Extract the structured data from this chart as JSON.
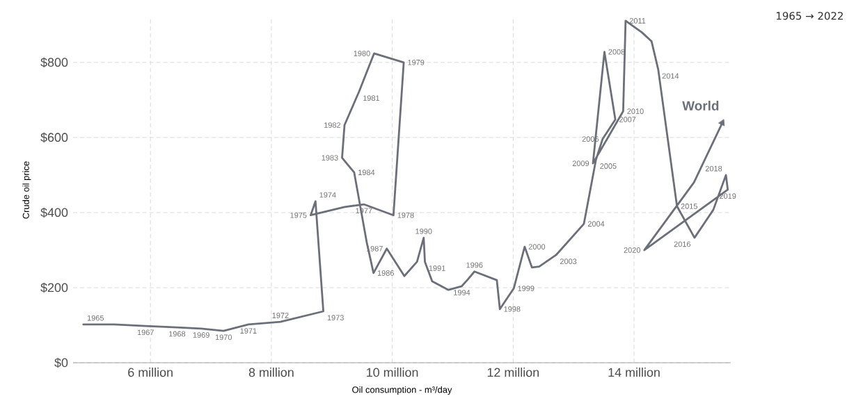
{
  "chart_data": {
    "type": "line",
    "xlabel": "Oil consumption - m³/day",
    "ylabel": "Crude oil price",
    "xlim": [
      4.72,
      15.6
    ],
    "ylim": [
      0,
      920
    ],
    "xticks": [
      {
        "value": 6,
        "label": "6 million"
      },
      {
        "value": 8,
        "label": "8 million"
      },
      {
        "value": 10,
        "label": "10 million"
      },
      {
        "value": 12,
        "label": "12 million"
      },
      {
        "value": 14,
        "label": "14 million"
      }
    ],
    "yticks": [
      {
        "value": 0,
        "label": "$0"
      },
      {
        "value": 200,
        "label": "$200"
      },
      {
        "value": 400,
        "label": "$400"
      },
      {
        "value": 600,
        "label": "$600"
      },
      {
        "value": 800,
        "label": "$800"
      }
    ],
    "grid": true,
    "marker": "none",
    "line_style": "solid",
    "series": [
      {
        "name": "World",
        "color": "#6b6f7a",
        "x": [
          4.89,
          5.4,
          5.92,
          6.44,
          6.84,
          7.21,
          7.62,
          8.15,
          8.86,
          8.73,
          8.65,
          9.21,
          9.53,
          10.02,
          10.19,
          9.7,
          9.45,
          9.21,
          9.17,
          9.37,
          9.58,
          9.69,
          9.91,
          10.2,
          10.41,
          10.52,
          10.54,
          10.66,
          10.93,
          11.15,
          11.25,
          11.36,
          11.73,
          11.78,
          12.01,
          12.19,
          12.31,
          12.43,
          12.71,
          13.17,
          13.37,
          13.48,
          13.69,
          13.51,
          13.32,
          13.82,
          13.86,
          14.13,
          14.29,
          14.4,
          14.71,
          15.0,
          15.31,
          15.52,
          15.55,
          14.17,
          14.99,
          15.46
        ],
        "values": [
          102,
          102,
          98,
          94,
          91,
          85,
          102,
          109,
          137,
          430,
          393,
          415,
          422,
          393,
          800,
          824,
          722,
          633,
          546,
          507,
          319,
          239,
          304,
          231,
          269,
          333,
          269,
          217,
          194,
          204,
          222,
          243,
          220,
          143,
          198,
          309,
          254,
          256,
          287,
          370,
          541,
          596,
          648,
          828,
          531,
          670,
          911,
          880,
          856,
          781,
          417,
          333,
          407,
          500,
          461,
          300,
          480,
          639
        ]
      }
    ],
    "annotations": [
      "1965 → 2022",
      {
        "text": "1965",
        "x": 4.89,
        "y": 102
      },
      {
        "text": "1967",
        "x": 5.92,
        "y": 98
      },
      {
        "text": "1968",
        "x": 6.44,
        "y": 94
      },
      {
        "text": "1969",
        "x": 6.84,
        "y": 91
      },
      {
        "text": "1970",
        "x": 7.21,
        "y": 85
      },
      {
        "text": "1971",
        "x": 7.62,
        "y": 102
      },
      {
        "text": "1972",
        "x": 8.15,
        "y": 109
      },
      {
        "text": "1973",
        "x": 8.86,
        "y": 137
      },
      {
        "text": "1974",
        "x": 8.73,
        "y": 430
      },
      {
        "text": "1975",
        "x": 8.65,
        "y": 393
      },
      {
        "text": "1977",
        "x": 9.53,
        "y": 422
      },
      {
        "text": "1978",
        "x": 10.02,
        "y": 393
      },
      {
        "text": "1979",
        "x": 10.19,
        "y": 800
      },
      {
        "text": "1980",
        "x": 9.7,
        "y": 824
      },
      {
        "text": "1981",
        "x": 9.45,
        "y": 722
      },
      {
        "text": "1982",
        "x": 9.21,
        "y": 633
      },
      {
        "text": "1983",
        "x": 9.17,
        "y": 546
      },
      {
        "text": "1984",
        "x": 9.37,
        "y": 507
      },
      {
        "text": "1986",
        "x": 9.69,
        "y": 239
      },
      {
        "text": "1987",
        "x": 9.91,
        "y": 304
      },
      {
        "text": "1990",
        "x": 10.52,
        "y": 333
      },
      {
        "text": "1991",
        "x": 10.54,
        "y": 269
      },
      {
        "text": "1994",
        "x": 11.15,
        "y": 204
      },
      {
        "text": "1996",
        "x": 11.36,
        "y": 243
      },
      {
        "text": "1998",
        "x": 11.78,
        "y": 143
      },
      {
        "text": "1999",
        "x": 12.01,
        "y": 198
      },
      {
        "text": "2000",
        "x": 12.19,
        "y": 309
      },
      {
        "text": "2003",
        "x": 12.71,
        "y": 287
      },
      {
        "text": "2004",
        "x": 13.17,
        "y": 370
      },
      {
        "text": "2005",
        "x": 13.37,
        "y": 541
      },
      {
        "text": "2006",
        "x": 13.48,
        "y": 596
      },
      {
        "text": "2007",
        "x": 13.69,
        "y": 648
      },
      {
        "text": "2008",
        "x": 13.51,
        "y": 828
      },
      {
        "text": "2009",
        "x": 13.32,
        "y": 531
      },
      {
        "text": "2010",
        "x": 13.82,
        "y": 670
      },
      {
        "text": "2011",
        "x": 13.86,
        "y": 911
      },
      {
        "text": "2014",
        "x": 14.4,
        "y": 781
      },
      {
        "text": "2015",
        "x": 14.71,
        "y": 417
      },
      {
        "text": "2016",
        "x": 15.0,
        "y": 333
      },
      {
        "text": "2018",
        "x": 15.52,
        "y": 500
      },
      {
        "text": "2019",
        "x": 15.55,
        "y": 461
      },
      {
        "text": "2020",
        "x": 14.17,
        "y": 300
      }
    ]
  }
}
